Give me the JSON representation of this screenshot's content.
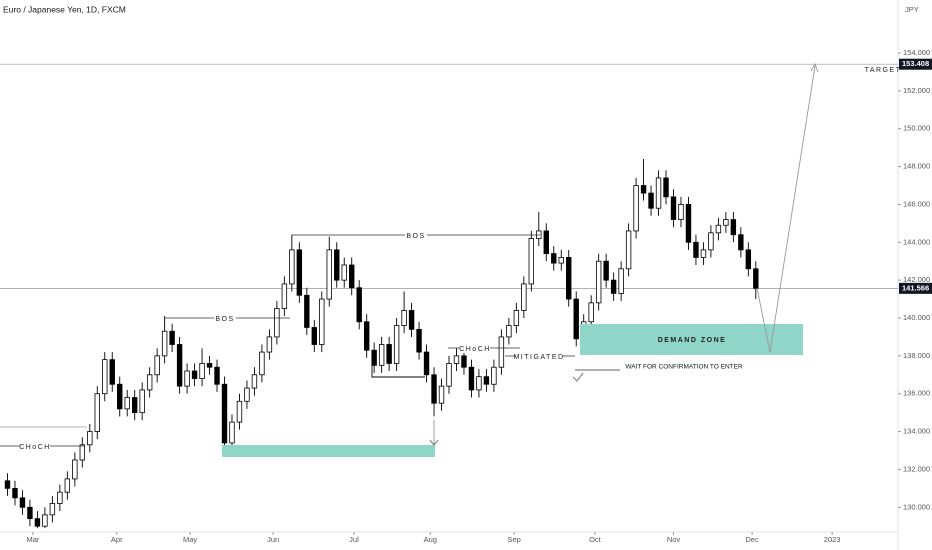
{
  "header": {
    "title": "Euro / Japanese Yen, 1D, FXCM",
    "currency": "JPY"
  },
  "chart_data": {
    "type": "candlestick",
    "ylim": [
      128.8,
      156.8
    ],
    "yticks": [
      {
        "value": 130,
        "label": "130.000"
      },
      {
        "value": 132,
        "label": "132.000"
      },
      {
        "value": 134,
        "label": "134.000"
      },
      {
        "value": 136,
        "label": "136.000"
      },
      {
        "value": 138,
        "label": "138.000"
      },
      {
        "value": 140,
        "label": "140.000"
      },
      {
        "value": 142,
        "label": "142.000"
      },
      {
        "value": 144,
        "label": "144.000"
      },
      {
        "value": 146,
        "label": "146.000"
      },
      {
        "value": 148,
        "label": "148.000"
      },
      {
        "value": 150,
        "label": "150.000"
      },
      {
        "value": 152,
        "label": "152.000"
      },
      {
        "value": 154,
        "label": "154.000"
      }
    ],
    "xlim": [
      -1,
      119
    ],
    "xticks": [
      {
        "value": 3.4,
        "label": "Mar"
      },
      {
        "value": 14.6,
        "label": "Apr"
      },
      {
        "value": 24.4,
        "label": "May"
      },
      {
        "value": 35.5,
        "label": "Jun"
      },
      {
        "value": 46.3,
        "label": "Jul"
      },
      {
        "value": 56.5,
        "label": "Aug"
      },
      {
        "value": 67.7,
        "label": "Sep"
      },
      {
        "value": 78.5,
        "label": "Oct"
      },
      {
        "value": 89,
        "label": "Nov"
      },
      {
        "value": 99.5,
        "label": "Dec"
      },
      {
        "value": 110.2,
        "label": "2023"
      }
    ],
    "up_color": "#ffffff",
    "down_color": "#000000",
    "open": [
      131.4,
      131.0,
      130.5,
      130.0,
      129.4,
      129.0,
      129.6,
      130.2,
      130.8,
      131.5,
      132.5,
      133.3,
      134.0,
      136.0,
      137.8,
      136.5,
      135.2,
      135.8,
      135.0,
      136.2,
      137.0,
      138.0,
      139.3,
      138.6,
      136.4,
      137.2,
      136.8,
      137.6,
      137.4,
      136.5,
      133.4,
      134.5,
      135.6,
      136.3,
      137.0,
      138.2,
      139.0,
      140.5,
      141.8,
      143.6,
      141.2,
      139.5,
      138.6,
      141.0,
      143.6,
      142.0,
      142.8,
      141.6,
      139.8,
      138.3,
      137.5,
      138.6,
      137.6,
      139.6,
      140.4,
      139.4,
      138.2,
      137.0,
      135.5,
      136.4,
      137.6,
      138.0,
      137.4,
      136.2,
      136.9,
      136.5,
      137.4,
      139.0,
      139.6,
      140.4,
      141.8,
      144.2,
      144.6,
      143.4,
      142.9,
      143.2,
      141.0,
      138.9,
      139.8,
      140.8,
      143.0,
      142.0,
      141.3,
      142.6,
      144.6,
      147.0,
      146.6,
      145.8,
      147.4,
      146.4,
      145.2,
      146.0,
      144.0,
      143.2,
      143.6,
      144.5,
      144.9,
      145.2,
      144.4,
      143.6,
      142.6
    ],
    "high": [
      131.8,
      131.4,
      130.9,
      130.4,
      129.8,
      130.0,
      130.6,
      131.2,
      131.9,
      132.9,
      133.7,
      134.4,
      136.4,
      138.2,
      138.2,
      136.9,
      136.2,
      136.2,
      136.6,
      137.4,
      138.4,
      140.1,
      139.7,
      139.0,
      137.6,
      137.6,
      138.4,
      138.0,
      137.8,
      136.9,
      134.9,
      136.0,
      136.7,
      137.4,
      138.6,
      139.4,
      140.9,
      142.2,
      144.4,
      144.0,
      141.6,
      139.9,
      141.4,
      144.3,
      144.0,
      143.2,
      143.2,
      142.0,
      140.2,
      138.7,
      139.0,
      139.0,
      140.0,
      141.4,
      140.8,
      139.8,
      138.6,
      137.4,
      136.8,
      138.0,
      138.4,
      138.4,
      137.8,
      137.3,
      137.3,
      137.8,
      139.4,
      140.0,
      140.8,
      142.2,
      144.6,
      145.6,
      145.0,
      143.8,
      143.6,
      143.6,
      141.4,
      140.2,
      141.2,
      143.4,
      143.4,
      142.4,
      143.0,
      145.0,
      147.4,
      148.4,
      147.0,
      147.8,
      147.8,
      146.8,
      146.4,
      146.4,
      144.4,
      144.0,
      144.9,
      145.3,
      145.6,
      145.6,
      144.8,
      144.0,
      143.0
    ],
    "low": [
      130.6,
      130.1,
      129.6,
      129.0,
      128.9,
      128.9,
      129.2,
      129.8,
      130.4,
      131.1,
      132.1,
      132.9,
      133.6,
      135.6,
      136.1,
      134.8,
      134.8,
      134.6,
      134.6,
      135.8,
      136.6,
      137.6,
      138.2,
      136.0,
      136.0,
      136.4,
      136.4,
      137.0,
      136.1,
      133.0,
      133.0,
      134.1,
      135.2,
      135.9,
      136.6,
      137.8,
      138.6,
      140.1,
      141.4,
      140.8,
      139.1,
      138.2,
      138.2,
      140.6,
      141.6,
      141.6,
      141.2,
      139.4,
      137.9,
      137.1,
      137.1,
      137.2,
      137.2,
      139.2,
      139.0,
      137.8,
      136.6,
      134.8,
      135.1,
      136.0,
      137.2,
      137.0,
      135.8,
      135.8,
      136.1,
      136.1,
      137.0,
      138.6,
      139.2,
      140.0,
      141.4,
      143.8,
      143.0,
      142.5,
      142.5,
      140.6,
      138.5,
      138.5,
      139.4,
      140.4,
      141.6,
      140.9,
      140.9,
      142.2,
      144.2,
      146.2,
      145.4,
      145.4,
      146.0,
      144.8,
      144.8,
      143.6,
      142.8,
      142.8,
      143.2,
      144.1,
      144.5,
      144.0,
      143.2,
      142.2,
      141.0
    ],
    "close": [
      131.0,
      130.5,
      130.0,
      129.4,
      129.0,
      129.6,
      130.2,
      130.8,
      131.5,
      132.5,
      133.3,
      134.0,
      136.0,
      137.8,
      136.5,
      135.2,
      135.8,
      135.0,
      136.2,
      137.0,
      138.0,
      139.3,
      138.6,
      136.4,
      137.2,
      136.8,
      137.6,
      137.4,
      136.5,
      133.4,
      134.5,
      135.6,
      136.3,
      137.0,
      138.2,
      139.0,
      140.5,
      141.8,
      143.6,
      141.2,
      139.5,
      138.6,
      141.0,
      143.6,
      142.0,
      142.8,
      141.6,
      139.8,
      138.3,
      137.5,
      138.6,
      137.6,
      139.6,
      140.4,
      139.4,
      138.2,
      137.0,
      135.5,
      136.4,
      137.6,
      138.0,
      137.4,
      136.2,
      136.9,
      136.5,
      137.4,
      139.0,
      139.6,
      140.4,
      141.8,
      144.2,
      144.6,
      143.4,
      142.9,
      143.2,
      141.0,
      138.9,
      139.8,
      140.8,
      143.0,
      142.0,
      141.3,
      142.6,
      144.6,
      147.0,
      146.6,
      145.8,
      147.4,
      146.4,
      145.2,
      146.0,
      144.0,
      143.2,
      143.6,
      144.5,
      144.9,
      145.2,
      144.4,
      143.6,
      142.6,
      141.566
    ],
    "price_lines": [
      {
        "value": 153.408,
        "label": "153.408"
      },
      {
        "value": 141.566,
        "label": "141.566"
      }
    ],
    "annotations": {
      "choch_1": "CHoCH",
      "bos_1": "BOS",
      "bos_2": "BOS",
      "choch_2": "CHoCH",
      "mitigated": "MITIGATED",
      "demand_zone": "DEMAND ZONE",
      "wait": "WAIT  FOR CONFIRMATION TO ENTER",
      "target": "TARGET"
    }
  }
}
